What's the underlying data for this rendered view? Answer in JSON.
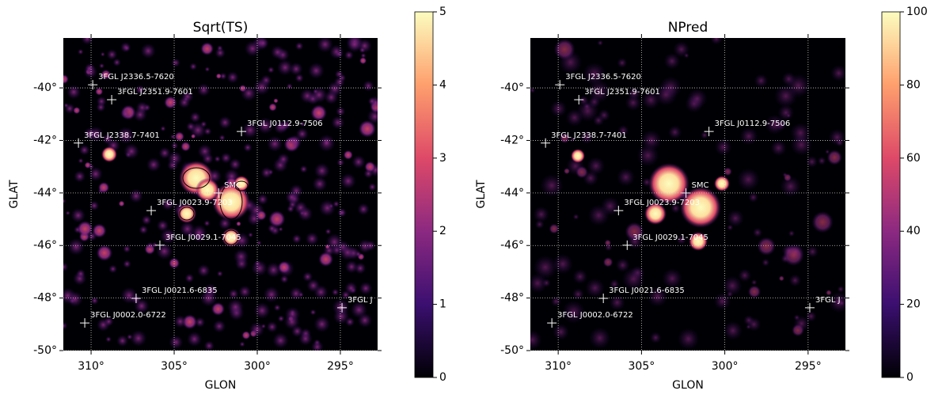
{
  "chart_data": [
    {
      "type": "skymap",
      "title": "Sqrt(TS)",
      "x_label": "GLON",
      "y_label": "GLAT",
      "xlim": [
        311.67,
        292.76
      ],
      "ylim": [
        -50,
        -38.1
      ],
      "xticks": [
        {
          "value": 310,
          "label": "310°"
        },
        {
          "value": 305,
          "label": "305°"
        },
        {
          "value": 300,
          "label": "300°"
        },
        {
          "value": 295,
          "label": "295°"
        }
      ],
      "yticks": [
        {
          "value": -50,
          "label": "-50°"
        },
        {
          "value": -48,
          "label": "-48°"
        },
        {
          "value": -46,
          "label": "-46°"
        },
        {
          "value": -44,
          "label": "-44°"
        },
        {
          "value": -42,
          "label": "-42°"
        },
        {
          "value": -40,
          "label": "-40°"
        }
      ],
      "colorbar": {
        "lim": [
          0,
          5
        ],
        "ticks": [
          0,
          1,
          2,
          3,
          4,
          5
        ]
      },
      "sources": [
        {
          "label": "3FGL J2336.5-7620",
          "x": 309.9,
          "y": -39.88
        },
        {
          "label": "3FGL J2351.9-7601",
          "x": 308.76,
          "y": -40.45
        },
        {
          "label": "3FGL J0112.9-7506",
          "x": 300.95,
          "y": -41.66
        },
        {
          "label": "3FGL J2338.7-7401",
          "x": 310.76,
          "y": -42.1
        },
        {
          "label": "SMC",
          "x": 302.33,
          "y": -44.0
        },
        {
          "label": "3FGL J0023.9-7203",
          "x": 306.38,
          "y": -44.67
        },
        {
          "label": "3FGL J0029.1-7045",
          "x": 305.86,
          "y": -45.99
        },
        {
          "label": "3FGL J0021.6-6835",
          "x": 307.29,
          "y": -48.01
        },
        {
          "label": "3FGL J0002.0-6722",
          "x": 310.38,
          "y": -48.95
        },
        {
          "label": "3FGL J",
          "x": 294.9,
          "y": -48.37
        }
      ]
    },
    {
      "type": "skymap",
      "title": "NPred",
      "x_label": "GLON",
      "y_label": "GLAT",
      "xlim": [
        311.67,
        292.76
      ],
      "ylim": [
        -50,
        -38.1
      ],
      "xticks": [
        {
          "value": 310,
          "label": "310°"
        },
        {
          "value": 305,
          "label": "305°"
        },
        {
          "value": 300,
          "label": "300°"
        },
        {
          "value": 295,
          "label": "295°"
        }
      ],
      "yticks": [
        {
          "value": -50,
          "label": "-50°"
        },
        {
          "value": -48,
          "label": "-48°"
        },
        {
          "value": -46,
          "label": "-46°"
        },
        {
          "value": -44,
          "label": "-44°"
        },
        {
          "value": -42,
          "label": "-42°"
        },
        {
          "value": -40,
          "label": "-40°"
        }
      ],
      "colorbar": {
        "lim": [
          0,
          100
        ],
        "ticks": [
          0,
          20,
          40,
          60,
          80,
          100
        ]
      },
      "sources": [
        {
          "label": "3FGL J2336.5-7620",
          "x": 309.9,
          "y": -39.88
        },
        {
          "label": "3FGL J2351.9-7601",
          "x": 308.76,
          "y": -40.45
        },
        {
          "label": "3FGL J0112.9-7506",
          "x": 300.95,
          "y": -41.66
        },
        {
          "label": "3FGL J2338.7-7401",
          "x": 310.76,
          "y": -42.1
        },
        {
          "label": "SMC",
          "x": 302.33,
          "y": -44.0
        },
        {
          "label": "3FGL J0023.9-7203",
          "x": 306.38,
          "y": -44.67
        },
        {
          "label": "3FGL J0029.1-7045",
          "x": 305.86,
          "y": -45.99
        },
        {
          "label": "3FGL J0021.6-6835",
          "x": 307.29,
          "y": -48.01
        },
        {
          "label": "3FGL J0002.0-6722",
          "x": 310.38,
          "y": -48.95
        },
        {
          "label": "3FGL J",
          "x": 294.9,
          "y": -48.37
        }
      ]
    }
  ]
}
